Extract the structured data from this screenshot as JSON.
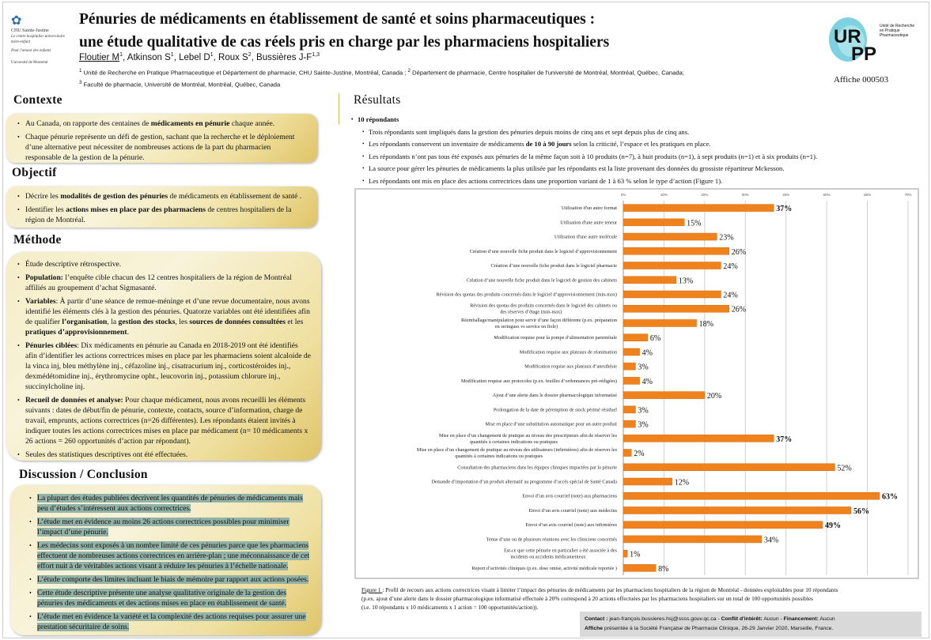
{
  "header": {
    "title_line1": "Pénuries de médicaments en établissement de santé et soins pharmaceutiques :",
    "title_line2": "une étude qualitative de cas réels pris en charge par les pharmaciens hospitaliers",
    "authors": [
      {
        "name": "Floutier M",
        "sup": "1",
        "underline": true
      },
      {
        "name": "Atkinson S",
        "sup": "1"
      },
      {
        "name": "Lebel D",
        "sup": "1"
      },
      {
        "name": "Roux S",
        "sup": "2"
      },
      {
        "name": "Bussières J-F",
        "sup": "1,3"
      }
    ],
    "affil_line1_sup1": "1",
    "affil_line1": " Unité de Recherche en Pratique Pharmaceutique et Département de pharmacie, CHU Sainte-Justine, Montréal, Canada ; ",
    "affil_line1_sup2": "2",
    "affil_line1b": " Département de pharmacie, Centre hospitalier de l'université de Montréal, Montréal, Québec, Canada;",
    "affil_line2_sup": "3",
    "affil_line2": " Faculté de pharmacie, Université de Montréal, Montréal, Québec, Canada",
    "logo_left": {
      "name": "CHU Sainte-Justine",
      "sub1": "Le centre hospitalier universitaire mère-enfant",
      "sub2": "Pour l'amour des enfants",
      "univ": "Université de Montréal"
    },
    "logo_right": {
      "letters": "URPP",
      "text": "Unité de Recherche en Pratique Pharmaceutique"
    },
    "affiche": "Affiche 000503"
  },
  "contexte": {
    "title": "Contexte",
    "items": [
      [
        {
          "t": "Au Canada, on rapporte des centaines de "
        },
        {
          "t": "médicaments en pénurie",
          "b": true
        },
        {
          "t": " chaque année."
        }
      ],
      [
        {
          "t": "Chaque pénurie représente un défi de gestion, sachant que la recherche et le déploiement d’une alternative peut  nécessiter de nombreuses actions de la part du pharmacien responsable de la gestion de la pénurie."
        }
      ]
    ]
  },
  "objectif": {
    "title": "Objectif",
    "items": [
      [
        {
          "t": "Décrire les "
        },
        {
          "t": "modalités de gestion des pénuries",
          "b": true
        },
        {
          "t": " de médicaments en établissement de santé ."
        }
      ],
      [
        {
          "t": "Identifier les "
        },
        {
          "t": "actions mises en place par des pharmaciens",
          "b": true
        },
        {
          "t": " de centres hospitaliers de la région de Montréal."
        }
      ]
    ]
  },
  "methode": {
    "title": "Méthode",
    "items": [
      [
        {
          "t": "Étude descriptive rétrospective."
        }
      ],
      [
        {
          "t": "Population:",
          "b": true
        },
        {
          "t": " l’enquête cible chacun des 12 centres hospitaliers de la région de Montréal affiliés au groupement d’achat Sigmasanté."
        }
      ],
      [
        {
          "t": "Variables",
          "b": true
        },
        {
          "t": ": À partir d’une séance de remue-méninge et d’une revue documentaire, nous avons identifié les éléments clés à la gestion des pénuries. Quatorze variables ont été identifiées afin de qualifier "
        },
        {
          "t": "l’organisation",
          "b": true
        },
        {
          "t": ", la "
        },
        {
          "t": "gestion des stocks",
          "b": true
        },
        {
          "t": ", les "
        },
        {
          "t": "sources de données consultées",
          "b": true
        },
        {
          "t": " et les "
        },
        {
          "t": "pratiques d’approvisionnement",
          "b": true
        },
        {
          "t": "."
        }
      ],
      [
        {
          "t": "Pénuries ciblées",
          "b": true
        },
        {
          "t": ": Dix  médicaments en pénurie au Canada en 2018-2019 ont été identifiés afin d’identifier les actions correctrices mises en place par les pharmaciens soient alcaloide de la vinca inj, bleu méthylène inj., céfazoline inj., cisatracurium inj., corticostéroides inj., dexmédétomidine inj., érythromycine opht., leucovorin inj., potassium chlorure inj., succinylcholine inj."
        }
      ],
      [
        {
          "t": "Recueil de données et analyse:",
          "b": true
        },
        {
          "t": " Pour chaque médicament, nous avons recueilli les éléments suivants :  dates de début/fin de pénurie,  contexte,  contacts,  source d’information,  charge de travail,  emprunts,  actions correctrices (n=26 différentes).  Les répondants étaient invités à indiquer toutes les actions correctrices mises en place par médicament (n= 10 médicaments x 26 actions = 260 opportunités d’action par répondant)."
        }
      ],
      [
        {
          "t": "Seules des statistiques descriptives ont été effectuées."
        }
      ]
    ]
  },
  "discussion": {
    "title": "Discussion / Conclusion",
    "items": [
      [
        {
          "t": "La plupart des études publiées décrivent les quantités de pénuries de médicaments  mais peu d’études s’intéressent aux actions correctrices."
        }
      ],
      [
        {
          "t": "L’étude met en évidence au moins 26 actions correctrices possibles pour minimiser l’impact d’une pénurie."
        }
      ],
      [
        {
          "t": "Les médecins sont exposés à un nombre limité de ces pénuries parce que les pharmaciens effectuent de nombreuses actions correctrices en arrière-plan ; une méconnaissance de cet effort nuit à de véritables actions visant à réduire les pénuries à l’échelle nationale."
        }
      ],
      [
        {
          "t": "L’étude comporte des limites incluant le biais de mémoire par rapport aux actions posées."
        }
      ],
      [
        {
          "t": "Cette étude descriptive présente une analyse qualitative originale de la gestion des pénuries des médicaments et des actions mises en place en établissement de santé."
        }
      ],
      [
        {
          "t": "L’étude met en évidence la variété et la complexité des actions requises pour assurer une prestation sécuritaire de soins."
        }
      ]
    ]
  },
  "resultats": {
    "title": "Résultats",
    "main": "10 répondants",
    "items": [
      [
        {
          "t": "Trois répondants sont impliqués dans la gestion des pénuries depuis moins de cinq ans et sept depuis plus de cinq ans."
        }
      ],
      [
        {
          "t": "Les répondants conservent un inventaire de médicaments "
        },
        {
          "t": "de 10 à 90 jours",
          "b": true
        },
        {
          "t": " selon la criticité, l’espace et les pratiques en place."
        }
      ],
      [
        {
          "t": "Les répondants n’ont pas tous été exposés aux pénuries de la même façon soit à 10 produits (n=7), à huit produits (n=1), à sept produits (n=1) et à  six produits (n=1)."
        }
      ],
      [
        {
          "t": "La source pour gérer les pénuries de médicaments la  plus utilisée par les répondants est la liste provenant des données du grossiste répartiteur Mckesson."
        }
      ],
      [
        {
          "t": "Les répondants ont mis en place des actions correctrices dans une proportion variant de 1 à 63 % selon le type d’action (Figure 1)."
        }
      ]
    ]
  },
  "chart_data": {
    "type": "bar",
    "orientation": "horizontal",
    "xlim": [
      0,
      70
    ],
    "xticks": [
      "0%",
      "10%",
      "20%",
      "30%",
      "40%",
      "50%",
      "60%",
      "70%"
    ],
    "grid": true,
    "bar_color": "#f0821e",
    "categories": [
      "Utilisation d'un autre format",
      "Utilisation d'une autre teneur",
      "Utilisation d'une autre molécule",
      "Création d’une nouvelle fiche produit dans le logiciel d’approvisionnement",
      "Création d’une nouvelle fiche produit dans le logiciel pharmacie",
      "Création d’une nouvelle fiche produit dans le logiciel de gestion des cabinets",
      "Révision des quotas des produits concernés dans le logiciel d’approvisionnement  (min-max)",
      "Révision des quotas des produits concernés dans le logiciel des cabinets ou des réserves d’étage (min-max)",
      "Réemballage/manipulation  pour servir d’une façon différente (p.ex. préparation en seringues vs service en fiole)",
      "Modification requise pour la pompe d’alimentation parentérale",
      "Modification requise aux plateaux de réanimation",
      "Modification requise aux plateaux d’anesthésie",
      "Modification requise aux protocoles (p.ex. feuilles d’ordonnances pré-rédigées)",
      "Ajout d’une alerte dans le dossier pharmacologique informatisé",
      "Prolongation de la date de péremption de stock périmé résiduel",
      "Mise en place d’une substitution automatique pour un autre produit",
      "Mise en place d’un changement de pratique au niveau des prescripteurs afin de réserver les quantités à certaines indications ou pratiques",
      "Mise en place d’un changement de pratique au niveau des utilisateurs (infirmières) afin de réserver les quantités à certaines indications ou pratiques",
      "Consultation des pharmaciens dans les équipes cliniques impactées par la pénurie",
      "Demande d’importation d’un produit alternatif au programme d’accès spécial de Santé Canada",
      "Envoi d’un avis courriel (note) aux pharmaciens",
      "Envoi d’un avis courriel (note) aux médecins",
      "Envoi d’un avis courriel (note) aux infirmières",
      "Tenue d’une ou de plusieurs réunions avec les cliniciens concernés",
      "Est-ce que cette pénurie en particulier a été associée à des incidents ou accidents médicamenteux",
      "Report d’activités cliniques (p.ex. dose omise, activité médicale reportée )"
    ],
    "values": [
      37,
      15,
      23,
      26,
      24,
      13,
      24,
      26,
      18,
      6,
      4,
      3,
      4,
      20,
      3,
      3,
      37,
      2,
      52,
      12,
      63,
      56,
      49,
      34,
      1,
      8
    ],
    "value_labels": [
      "37%",
      "15%",
      "23%",
      "26%",
      "24%",
      "13%",
      "24%",
      "26%",
      "18%",
      "6%",
      "4%",
      "3%",
      "4%",
      "20%",
      "3%",
      "3%",
      "37%",
      "2%",
      "52%",
      "12%",
      "63%",
      "56%",
      "49%",
      "34%",
      "1%",
      "8%"
    ],
    "bold_labels": [
      0,
      16,
      20,
      21,
      22
    ]
  },
  "figure_caption": {
    "ref": "Figure 1 ",
    "text": ": Profil de recours aux actions correctrices visant à limiter l’impact des pénuries de médicaments par les pharmaciens hospitaliers de la région de Montréal  - données exploitables pour 10 répondants",
    "line2": "(p.ex. ajout d’une alerte dans le dossier pharmacologique informatisé effectuée à 20% correspond à 20 actions effectuées par les pharmaciens hospitaliers sur un total de 100 opportunités possibles",
    "line3": "(i.e. 10 répondants x 10 médicaments x 1 action = 100 opportunités/action))."
  },
  "footer": {
    "contact_label": "Contact :",
    "contact": " jean-françois.bussieres.hsj@ssss.gouv.qc.ca - ",
    "coi_label": "Conflit d'intérêt:",
    "coi": " Aucun - ",
    "fin_label": "Financement:",
    "fin": " Aucun",
    "presented_label": "Affiche",
    "presented": " présentée à la Société Française de Pharmacie Clinique, 26-29 Janvier 2020, Marseille, France."
  }
}
